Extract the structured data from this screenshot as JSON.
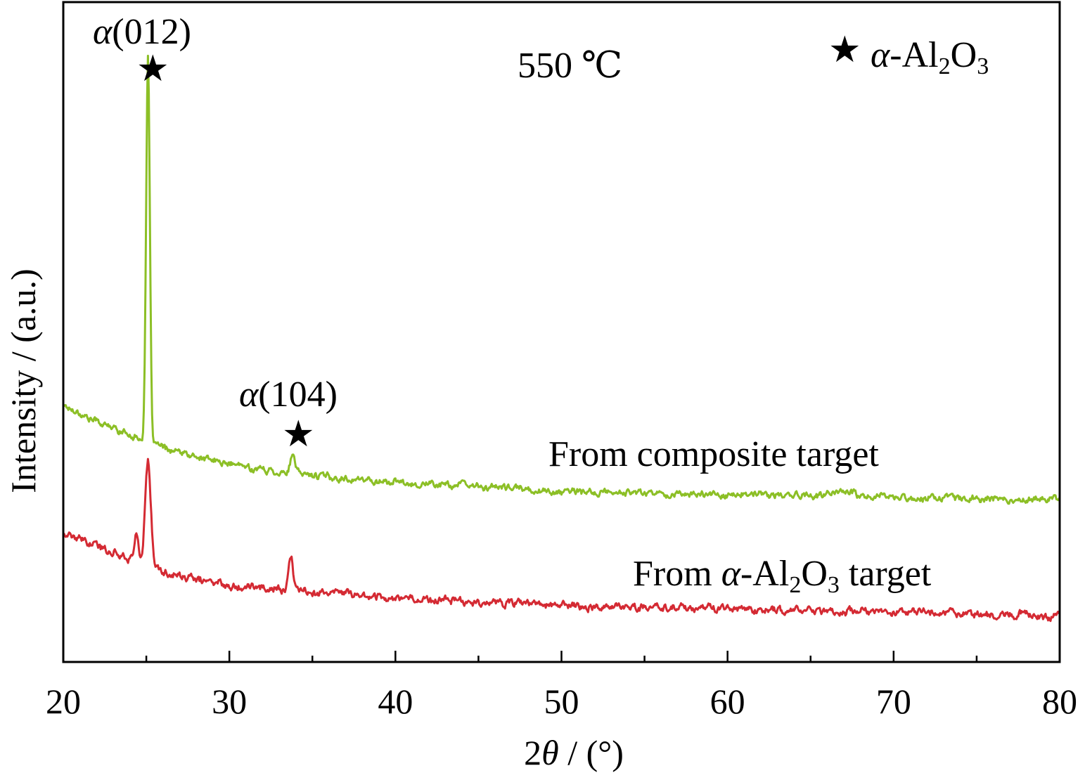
{
  "chart_data": {
    "type": "line",
    "title": "",
    "condition_label": "550 ℃",
    "xlabel": {
      "prefix": "2",
      "symbol": "θ",
      "suffix": " / (°)"
    },
    "ylabel": "Intensity / (a.u.)",
    "xlim": [
      20,
      80
    ],
    "xticks": [
      20,
      30,
      40,
      50,
      60,
      70,
      80
    ],
    "xtick_labels": [
      "20",
      "30",
      "40",
      "50",
      "60",
      "70",
      "80"
    ],
    "ylim": [
      0,
      100
    ],
    "y_ticks_shown": false,
    "grid": false,
    "legend": {
      "position": "top-right",
      "marker": "★",
      "symbol": "α",
      "text": "-Al",
      "sub1": "2",
      "mid": "O",
      "sub2": "3"
    },
    "annotations": [
      {
        "symbol": "α",
        "text": "(012)",
        "marker": "★",
        "x": 25.1
      },
      {
        "symbol": "α",
        "text": "(104)",
        "marker": "★",
        "x": 33.8
      }
    ],
    "series": [
      {
        "name": "From composite target",
        "label_parts": {
          "before": "From composite target"
        },
        "color": "#8cbf26",
        "baseline": [
          [
            20,
            39.0
          ],
          [
            22,
            36.5
          ],
          [
            24,
            34.5
          ],
          [
            26,
            32.5
          ],
          [
            28,
            31.0
          ],
          [
            30,
            30.0
          ],
          [
            33,
            28.8
          ],
          [
            37,
            27.8
          ],
          [
            40,
            27.2
          ],
          [
            45,
            26.6
          ],
          [
            50,
            25.8
          ],
          [
            55,
            25.6
          ],
          [
            60,
            25.4
          ],
          [
            65,
            25.2
          ],
          [
            70,
            25.0
          ],
          [
            75,
            24.8
          ],
          [
            80,
            24.6
          ]
        ],
        "peaks": [
          {
            "x": 25.1,
            "height": 58,
            "width": 0.11
          },
          {
            "x": 33.8,
            "height": 2.6,
            "width": 0.14
          },
          {
            "x": 67.0,
            "height": 0.8,
            "width": 0.4
          }
        ],
        "noise": 0.35
      },
      {
        "name": "From α-Al2O3 target",
        "label_parts": {
          "before": "From ",
          "symbol": "α",
          "after": "-Al",
          "sub1": "2",
          "mid": "O",
          "sub2": "3",
          "end": " target"
        },
        "color": "#d42a33",
        "baseline": [
          [
            20,
            19.5
          ],
          [
            22,
            17.5
          ],
          [
            24,
            15.8
          ],
          [
            26,
            13.5
          ],
          [
            28,
            12.5
          ],
          [
            30,
            11.8
          ],
          [
            33,
            11.0
          ],
          [
            37,
            10.3
          ],
          [
            40,
            9.8
          ],
          [
            45,
            9.2
          ],
          [
            50,
            8.6
          ],
          [
            55,
            8.3
          ],
          [
            60,
            8.0
          ],
          [
            65,
            7.8
          ],
          [
            70,
            7.5
          ],
          [
            75,
            7.3
          ],
          [
            80,
            7.0
          ]
        ],
        "peaks": [
          {
            "x": 25.1,
            "height": 16,
            "width": 0.17
          },
          {
            "x": 24.4,
            "height": 4,
            "width": 0.12
          },
          {
            "x": 33.7,
            "height": 5.3,
            "width": 0.13
          }
        ],
        "noise": 0.4
      }
    ]
  }
}
